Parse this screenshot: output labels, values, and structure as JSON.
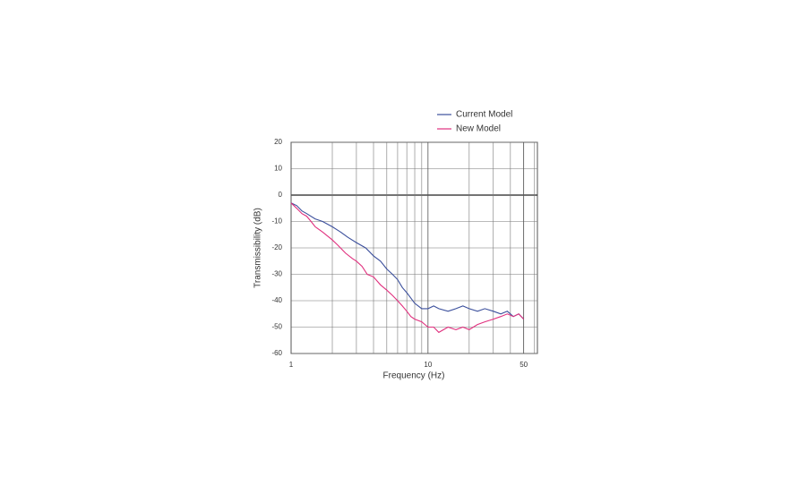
{
  "chart_data": {
    "type": "line",
    "x_label": "Frequency (Hz)",
    "y_label": "Transmissibility (dB)",
    "log_x": true,
    "xlim": [
      1,
      63
    ],
    "xticks": [
      1,
      10,
      50
    ],
    "minor_xticks": [
      2,
      3,
      4,
      5,
      6,
      7,
      8,
      9,
      20,
      30,
      40,
      50,
      60
    ],
    "ylim": [
      -60,
      20
    ],
    "yticks": [
      20,
      10,
      0,
      -10,
      -20,
      -30,
      -40,
      -50,
      -60
    ],
    "grid": true,
    "legend": "top-right",
    "series": [
      {
        "name": "Current Model",
        "color": "#3b4f9c",
        "x": [
          1,
          1.1,
          1.2,
          1.3,
          1.5,
          1.7,
          2,
          2.3,
          2.6,
          3,
          3.5,
          4,
          4.5,
          5,
          5.5,
          6,
          6.5,
          7,
          7.5,
          8,
          8.5,
          9,
          10,
          11,
          12,
          14,
          16,
          18,
          20,
          23,
          26,
          30,
          34,
          38,
          42,
          46,
          50
        ],
        "values": [
          -3,
          -4,
          -6,
          -7,
          -9,
          -10,
          -12,
          -14,
          -16,
          -18,
          -20,
          -23,
          -25,
          -28,
          -30,
          -32,
          -35,
          -37,
          -39,
          -41,
          -42,
          -43,
          -43,
          -42,
          -43,
          -44,
          -43,
          -42,
          -43,
          -44,
          -43,
          -44,
          -45,
          -44,
          -46,
          -45,
          -47
        ]
      },
      {
        "name": "New Model",
        "color": "#e0307e",
        "x": [
          1,
          1.1,
          1.2,
          1.3,
          1.4,
          1.5,
          1.7,
          2,
          2.2,
          2.5,
          2.8,
          3,
          3.3,
          3.6,
          4,
          4.5,
          5,
          5.5,
          6,
          6.5,
          7,
          7.5,
          8,
          9,
          10,
          11,
          12,
          14,
          16,
          18,
          20,
          23,
          26,
          30,
          34,
          38,
          42,
          46,
          50
        ],
        "values": [
          -3,
          -5,
          -7,
          -8,
          -10,
          -12,
          -14,
          -17,
          -19,
          -22,
          -24,
          -25,
          -27,
          -30,
          -31,
          -34,
          -36,
          -38,
          -40,
          -42,
          -44,
          -46,
          -47,
          -48,
          -50,
          -50,
          -52,
          -50,
          -51,
          -50,
          -51,
          -49,
          -48,
          -47,
          -46,
          -45,
          -46,
          -45,
          -47
        ]
      }
    ]
  }
}
